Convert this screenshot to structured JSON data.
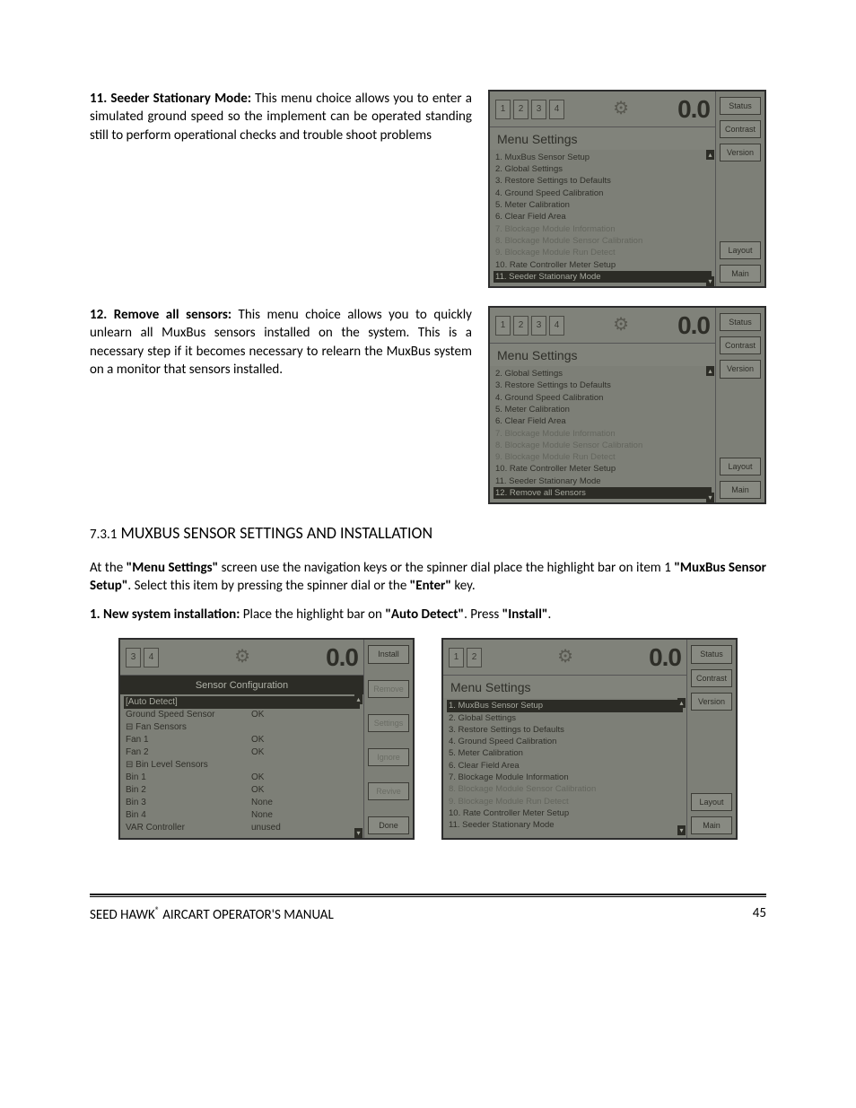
{
  "items": {
    "i11": {
      "num": "11.",
      "title": "Seeder Stationary Mode:",
      "text": "This menu choice allows you to enter a simulated ground speed so the implement can be operated standing still to perform operational checks and trouble shoot problems"
    },
    "i12": {
      "num": "12.",
      "title": "Remove all sensors:",
      "text": "This menu choice allows you to quickly unlearn all MuxBus sensors installed on the system. This is a necessary step if it becomes necessary to relearn the MuxBus system on a monitor that sensors installed."
    }
  },
  "section": {
    "num": "7.3.1",
    "title": "MUXBUS SENSOR SETTINGS AND INSTALLATION"
  },
  "body": {
    "p1a": "At the ",
    "p1b": "\"Menu Settings\"",
    "p1c": " screen use the navigation keys or the spinner dial place the highlight bar on item 1 ",
    "p1d": "\"MuxBus Sensor Setup\"",
    "p1e": ". Select this item by pressing the spinner dial or the ",
    "p1f": "\"Enter\"",
    "p1g": " key.",
    "p2a": "1. New system installation: ",
    "p2b": "Place the highlight bar on ",
    "p2c": "\"Auto Detect\"",
    "p2d": ". Press ",
    "p2e": "\"Install\"",
    "p2f": "."
  },
  "lcd_common": {
    "title": "Menu Settings",
    "zero": "0.0",
    "side": {
      "status": "Status",
      "contrast": "Contrast",
      "version": "Version",
      "layout": "Layout",
      "main": "Main"
    },
    "tabs": [
      "1",
      "2",
      "3",
      "4"
    ]
  },
  "lcd1": {
    "rows": [
      {
        "t": "1. MuxBus Sensor Setup",
        "cls": ""
      },
      {
        "t": "2. Global Settings",
        "cls": ""
      },
      {
        "t": "3. Restore Settings to Defaults",
        "cls": ""
      },
      {
        "t": "4. Ground Speed Calibration",
        "cls": ""
      },
      {
        "t": "5. Meter Calibration",
        "cls": ""
      },
      {
        "t": "6. Clear Field Area",
        "cls": ""
      },
      {
        "t": "7. Blockage Module Information",
        "cls": "dim"
      },
      {
        "t": "8. Blockage Module Sensor Calibration",
        "cls": "dim"
      },
      {
        "t": "9. Blockage Module Run Detect",
        "cls": "dim"
      },
      {
        "t": "10. Rate Controller Meter Setup",
        "cls": ""
      },
      {
        "t": "11. Seeder Stationary Mode",
        "cls": "hl"
      }
    ]
  },
  "lcd2": {
    "rows": [
      {
        "t": "2. Global Settings",
        "cls": ""
      },
      {
        "t": "3. Restore Settings to Defaults",
        "cls": ""
      },
      {
        "t": "4. Ground Speed Calibration",
        "cls": ""
      },
      {
        "t": "5. Meter Calibration",
        "cls": ""
      },
      {
        "t": "6. Clear Field Area",
        "cls": ""
      },
      {
        "t": "7. Blockage Module Information",
        "cls": "dim"
      },
      {
        "t": "8. Blockage Module Sensor Calibration",
        "cls": "dim"
      },
      {
        "t": "9. Blockage Module Run Detect",
        "cls": "dim"
      },
      {
        "t": "10. Rate Controller Meter Setup",
        "cls": ""
      },
      {
        "t": "11. Seeder Stationary Mode",
        "cls": ""
      },
      {
        "t": "12. Remove all Sensors",
        "cls": "hl"
      }
    ]
  },
  "lcd3": {
    "title": "Sensor Configuration",
    "tabs": [
      "3",
      "4"
    ],
    "side": {
      "a": "Install",
      "b": "Remove",
      "c": "Settings",
      "d": "Ignore",
      "e": "Revive",
      "f": "Done"
    },
    "rows": [
      {
        "l": "[Auto Detect]",
        "r": "",
        "cls": "hl"
      },
      {
        "l": "Ground Speed Sensor",
        "r": "OK",
        "cls": ""
      },
      {
        "l": "⊟ Fan Sensors",
        "r": "",
        "cls": ""
      },
      {
        "l": "   Fan 1",
        "r": "OK",
        "cls": ""
      },
      {
        "l": "   Fan 2",
        "r": "OK",
        "cls": ""
      },
      {
        "l": "⊟ Bin Level Sensors",
        "r": "",
        "cls": ""
      },
      {
        "l": "   Bin 1",
        "r": "OK",
        "cls": ""
      },
      {
        "l": "   Bin 2",
        "r": "OK",
        "cls": ""
      },
      {
        "l": "   Bin 3",
        "r": "None",
        "cls": ""
      },
      {
        "l": "   Bin 4",
        "r": "None",
        "cls": ""
      },
      {
        "l": "VAR Controller",
        "r": "unused",
        "cls": ""
      }
    ]
  },
  "lcd4": {
    "tabs": [
      "1",
      "2"
    ],
    "rows": [
      {
        "t": "1. MuxBus Sensor Setup",
        "cls": "hl"
      },
      {
        "t": "2. Global Settings",
        "cls": ""
      },
      {
        "t": "3. Restore Settings to Defaults",
        "cls": ""
      },
      {
        "t": "4. Ground Speed Calibration",
        "cls": ""
      },
      {
        "t": "5. Meter Calibration",
        "cls": ""
      },
      {
        "t": "6. Clear Field Area",
        "cls": ""
      },
      {
        "t": "7. Blockage Module Information",
        "cls": ""
      },
      {
        "t": "8. Blockage Module Sensor Calibration",
        "cls": "dim"
      },
      {
        "t": "9. Blockage Module Run Detect",
        "cls": "dim"
      },
      {
        "t": "10. Rate Controller Meter Setup",
        "cls": ""
      },
      {
        "t": "11. Seeder Stationary Mode",
        "cls": ""
      }
    ]
  },
  "footer": {
    "left_a": "SEED HAWK",
    "left_b": "®",
    "left_c": " AIRCART OPERATOR'S MANUAL",
    "page": "45"
  }
}
